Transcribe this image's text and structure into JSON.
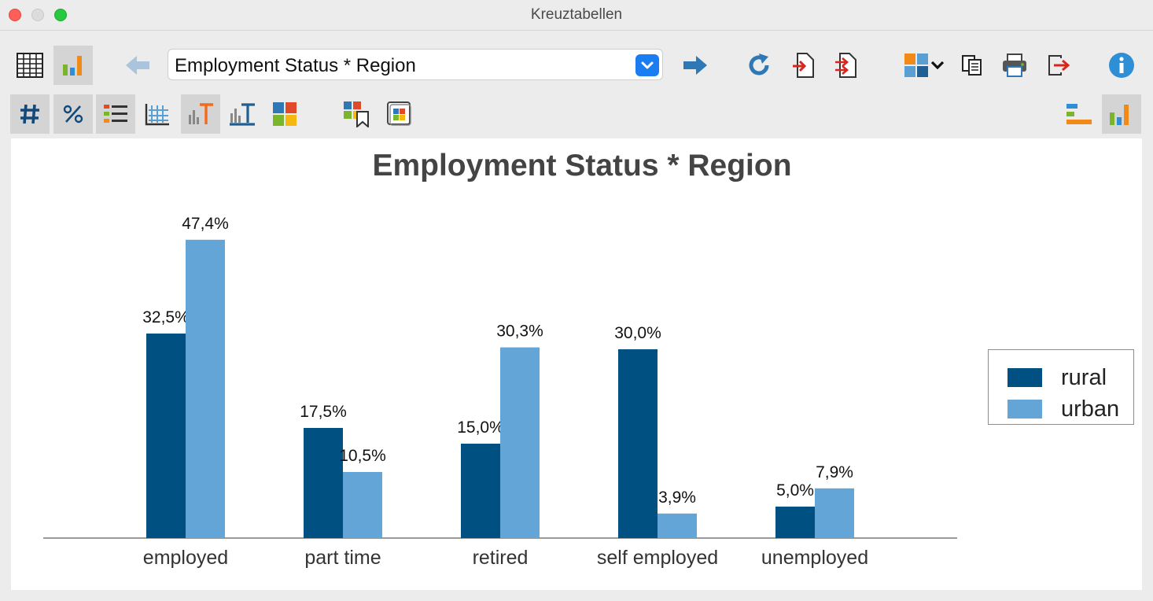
{
  "window": {
    "title": "Kreuztabellen"
  },
  "toolbar": {
    "table_selector": {
      "value": "Employment Status * Region"
    }
  },
  "icons": {
    "row1": [
      "table-view-icon",
      "chart-view-icon",
      "back-arrow-icon",
      "forward-arrow-icon",
      "refresh-icon",
      "export-icon",
      "export-all-icon",
      "puzzle-icon",
      "chevron-down-icon",
      "copy-icon",
      "print-icon",
      "exit-icon",
      "info-icon"
    ],
    "row2": [
      "hash-icon",
      "percent-icon",
      "list-icon",
      "grid-icon",
      "column-chart-title-icon",
      "bar-chart-title-icon",
      "color-palette-icon",
      "bookmark-chart-icon",
      "window-palette-icon",
      "horizontal-bar-icon",
      "vertical-bar-icon"
    ]
  },
  "colors": {
    "rural": "#005082",
    "urban": "#63a5d7",
    "accent": "#1a7ef2"
  },
  "chart_data": {
    "type": "bar",
    "title": "Employment Status * Region",
    "categories": [
      "employed",
      "part time",
      "retired",
      "self employed",
      "unemployed"
    ],
    "series": [
      {
        "name": "rural",
        "values": [
          32.5,
          17.5,
          15.0,
          30.0,
          5.0
        ],
        "labels": [
          "32,5%",
          "17,5%",
          "15,0%",
          "30,0%",
          "5,0%"
        ]
      },
      {
        "name": "urban",
        "values": [
          47.4,
          10.5,
          30.3,
          3.9,
          7.9
        ],
        "labels": [
          "47,4%",
          "10,5%",
          "30,3%",
          "3,9%",
          "7,9%"
        ]
      }
    ],
    "ylim": [
      0,
      50
    ],
    "grid": false,
    "legend": "right"
  }
}
